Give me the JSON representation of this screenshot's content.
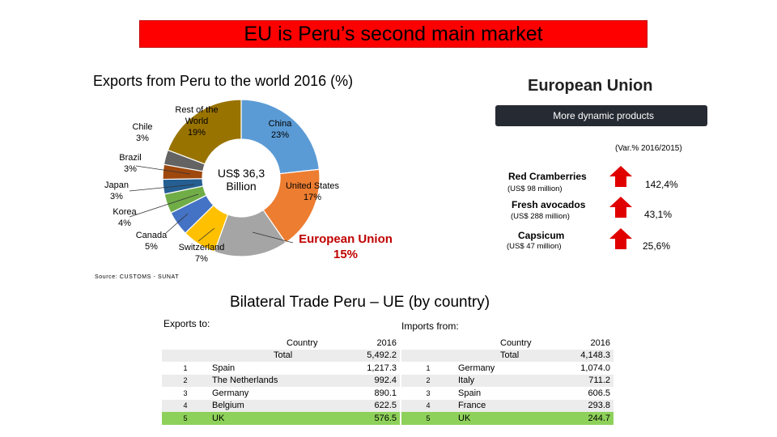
{
  "title": "EU is Peru’s second main market",
  "exports_title": "Exports from Peru to the world 2016 (%)",
  "eu_title": "European Union",
  "eu_subtitle": "More dynamic products",
  "variation_label": "(Var.% 2016/2015)",
  "colors": {
    "banner": "#ff0000",
    "eu_highlight": "#c00000",
    "arrow": "#e00000",
    "top_row": "#8ed15a"
  },
  "chart_data": {
    "type": "pie",
    "center_label": "US$ 36,3 Billion",
    "slices": [
      {
        "name": "China",
        "value": 23,
        "label": "China",
        "pct": "23%",
        "color": "#5b9bd5"
      },
      {
        "name": "United States",
        "value": 17,
        "label": "United States",
        "pct": "17%",
        "color": "#ed7d31"
      },
      {
        "name": "European Union",
        "value": 15,
        "label": "European Union",
        "pct": "15%",
        "color": "#a5a5a5"
      },
      {
        "name": "Switzerland",
        "value": 7,
        "label": "Switzerland",
        "pct": "7%",
        "color": "#ffc000"
      },
      {
        "name": "Canada",
        "value": 5,
        "label": "Canada",
        "pct": "5%",
        "color": "#4472c4"
      },
      {
        "name": "Korea",
        "value": 4,
        "label": "Korea",
        "pct": "4%",
        "color": "#70ad47"
      },
      {
        "name": "Japan",
        "value": 3,
        "label": "Japan",
        "pct": "3%",
        "color": "#255e91"
      },
      {
        "name": "Brazil",
        "value": 3,
        "label": "Brazil",
        "pct": "3%",
        "color": "#9e480e"
      },
      {
        "name": "Chile",
        "value": 3,
        "label": "Chile",
        "pct": "3%",
        "color": "#636363"
      },
      {
        "name": "Rest of the World",
        "value": 19,
        "label": "Rest of the World",
        "pct": "19%",
        "color": "#997300"
      }
    ]
  },
  "products": [
    {
      "name": "Red Cramberries",
      "sub": "(US$ 98 million)",
      "variation": "142,4%"
    },
    {
      "name": "Fresh avocados",
      "sub": "(US$ 288 million)",
      "variation": "43,1%"
    },
    {
      "name": "Capsicum",
      "sub": "(US$ 47 million)",
      "variation": "25,6%"
    }
  ],
  "source": "Source: CUSTOMS - SUNAT",
  "bilateral_title": "Bilateral Trade Peru – UE (by country)",
  "exports_to": {
    "label": "Exports to:",
    "header": {
      "country": "Country",
      "year": "2016"
    },
    "total": {
      "label": "Total",
      "value": "5,492.2"
    },
    "rows": [
      {
        "rank": "1",
        "country": "Spain",
        "value": "1,217.3"
      },
      {
        "rank": "2",
        "country": "The Netherlands",
        "value": "992.4"
      },
      {
        "rank": "3",
        "country": "Germany",
        "value": "890.1"
      },
      {
        "rank": "4",
        "country": "Belgium",
        "value": "622.5"
      },
      {
        "rank": "5",
        "country": "UK",
        "value": "576.5"
      }
    ]
  },
  "imports_from": {
    "label": "Imports from:",
    "header": {
      "country": "Country",
      "year": "2016"
    },
    "total": {
      "label": "Total",
      "value": "4,148.3"
    },
    "rows": [
      {
        "rank": "1",
        "country": "Germany",
        "value": "1,074.0"
      },
      {
        "rank": "2",
        "country": "Italy",
        "value": "711.2"
      },
      {
        "rank": "3",
        "country": "Spain",
        "value": "606.5"
      },
      {
        "rank": "4",
        "country": "France",
        "value": "293.8"
      },
      {
        "rank": "5",
        "country": "UK",
        "value": "244.7"
      }
    ]
  }
}
